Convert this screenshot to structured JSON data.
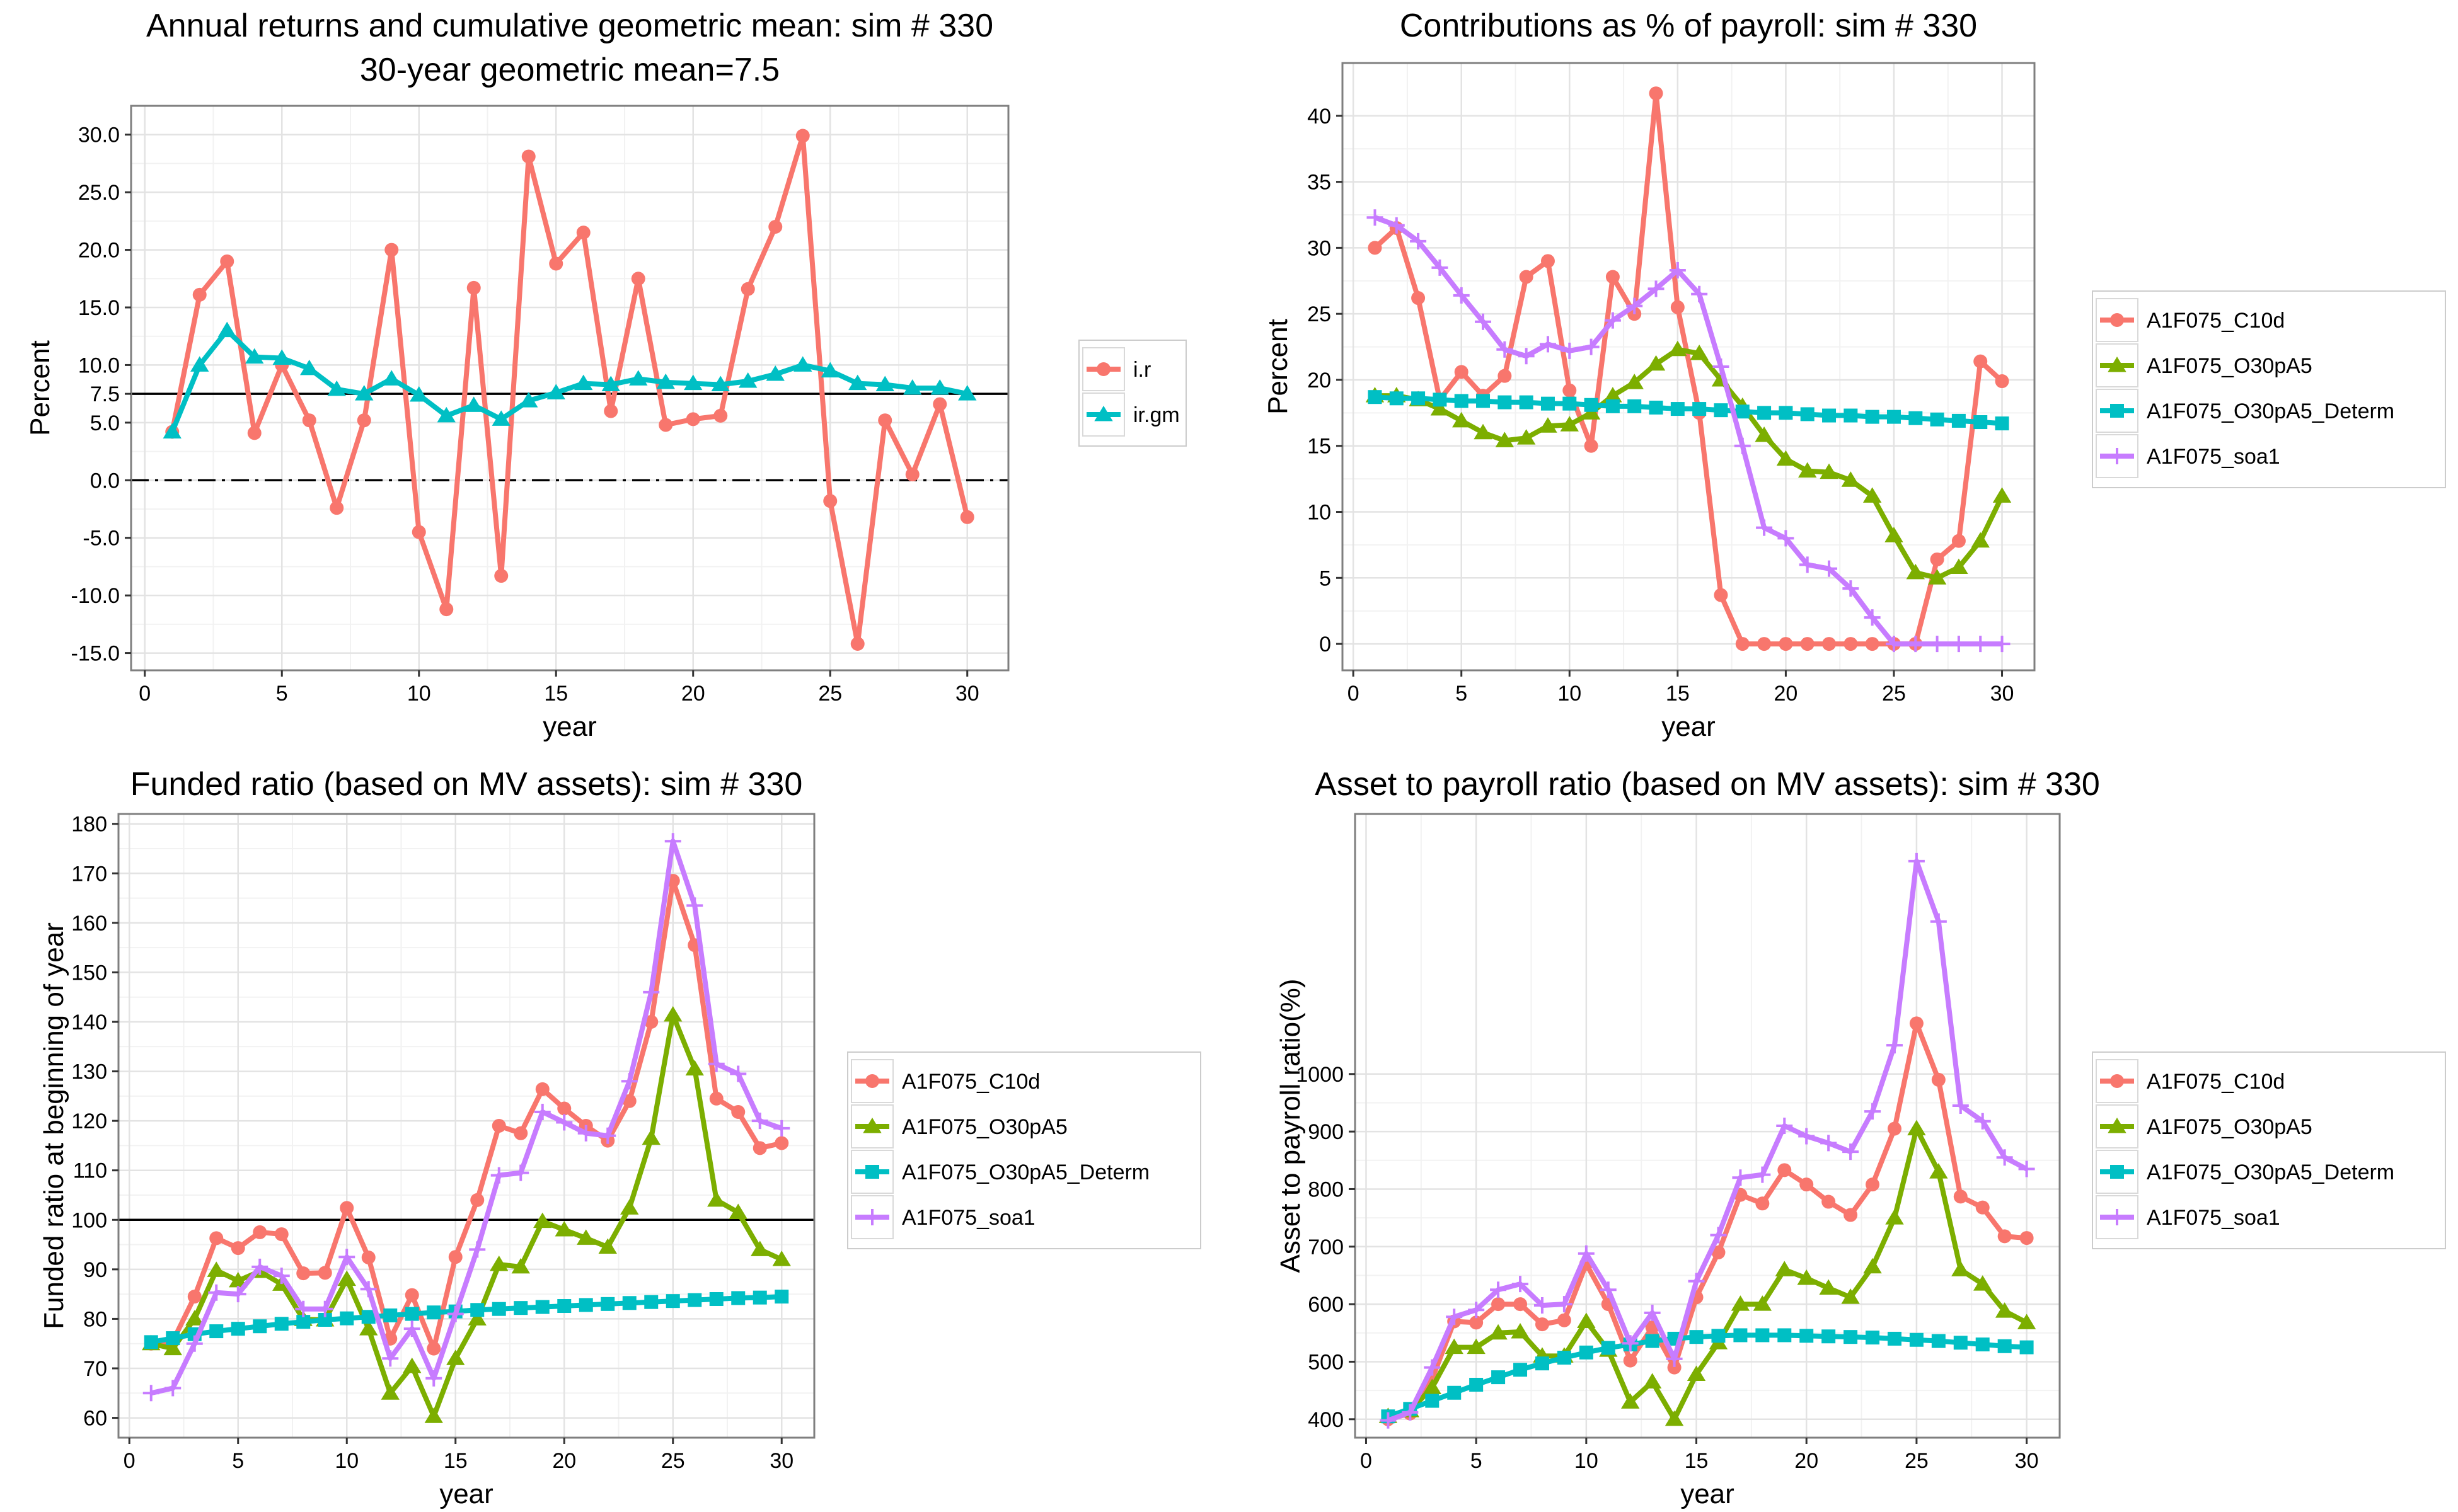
{
  "chart_data": [
    {
      "id": "returns",
      "type": "line",
      "title": "Annual returns and cumulative geometric mean: sim # 330",
      "subtitle": "30-year geometric mean=7.5",
      "xlabel": "year",
      "ylabel": "Percent",
      "xlim": [
        -0.5,
        31.5
      ],
      "ylim": [
        -16.5,
        32.5
      ],
      "xticks": [
        0,
        5,
        10,
        15,
        20,
        25,
        30
      ],
      "yticks": [
        -15,
        -10,
        -5,
        0,
        5,
        7.5,
        10,
        15,
        20,
        25,
        30
      ],
      "ytick_labels": [
        "-15.0",
        "-10.0",
        "-5.0",
        "0.0",
        "5.0",
        "7.5",
        "10.0",
        "15.0",
        "20.0",
        "25.0",
        "30.0"
      ],
      "hlines": [
        {
          "y": 7.5,
          "style": "solid"
        },
        {
          "y": 0,
          "style": "dashdot"
        }
      ],
      "grid": true,
      "legend_position": "right",
      "x": [
        1,
        2,
        3,
        4,
        5,
        6,
        7,
        8,
        9,
        10,
        11,
        12,
        13,
        14,
        15,
        16,
        17,
        18,
        19,
        20,
        21,
        22,
        23,
        24,
        25,
        26,
        27,
        28,
        29,
        30
      ],
      "series": [
        {
          "name": "i.r",
          "color": "#F8766D",
          "marker": "circle",
          "values": [
            4.2,
            16.1,
            19.0,
            4.1,
            10.0,
            5.2,
            -2.4,
            5.2,
            20.0,
            -4.5,
            -11.2,
            16.7,
            -8.3,
            28.1,
            18.8,
            21.5,
            6.0,
            17.5,
            4.8,
            5.3,
            5.6,
            16.6,
            22.0,
            29.9,
            -1.8,
            -14.2,
            5.2,
            0.5,
            6.6,
            -3.2
          ]
        },
        {
          "name": "ir.gm",
          "color": "#00BFC4",
          "marker": "triangle",
          "values": [
            4.2,
            10.0,
            13.0,
            10.7,
            10.6,
            9.7,
            7.9,
            7.5,
            8.8,
            7.4,
            5.6,
            6.5,
            5.3,
            6.9,
            7.6,
            8.4,
            8.3,
            8.8,
            8.5,
            8.4,
            8.3,
            8.6,
            9.2,
            10.0,
            9.5,
            8.4,
            8.3,
            8.0,
            8.0,
            7.5
          ]
        }
      ]
    },
    {
      "id": "contrib",
      "type": "line",
      "title": "Contributions as % of payroll: sim # 330",
      "xlabel": "year",
      "ylabel": "Percent",
      "xlim": [
        -0.5,
        31.5
      ],
      "ylim": [
        -2,
        44
      ],
      "xticks": [
        0,
        5,
        10,
        15,
        20,
        25,
        30
      ],
      "yticks": [
        0,
        5,
        10,
        15,
        20,
        25,
        30,
        35,
        40
      ],
      "ytick_labels": [
        "0",
        "5",
        "10",
        "15",
        "20",
        "25",
        "30",
        "35",
        "40"
      ],
      "grid": true,
      "legend_position": "right",
      "x": [
        1,
        2,
        3,
        4,
        5,
        6,
        7,
        8,
        9,
        10,
        11,
        12,
        13,
        14,
        15,
        16,
        17,
        18,
        19,
        20,
        21,
        22,
        23,
        24,
        25,
        26,
        27,
        28,
        29,
        30
      ],
      "series": [
        {
          "name": "A1F075_C10d",
          "color": "#F8766D",
          "marker": "circle",
          "values": [
            30.0,
            31.5,
            26.2,
            18.5,
            20.6,
            18.8,
            20.3,
            27.8,
            29.0,
            19.2,
            15.0,
            27.8,
            25.0,
            41.7,
            25.5,
            17.5,
            3.7,
            0,
            0,
            0,
            0,
            0,
            0,
            0,
            0,
            0,
            6.4,
            7.8,
            21.4,
            19.9
          ]
        },
        {
          "name": "A1F075_O30pA5",
          "color": "#7CAE00",
          "marker": "triangle",
          "values": [
            18.8,
            18.8,
            18.5,
            17.8,
            16.9,
            16.0,
            15.4,
            15.6,
            16.5,
            16.6,
            17.5,
            18.8,
            19.8,
            21.2,
            22.3,
            22.0,
            20.0,
            18.0,
            15.8,
            14.0,
            13.1,
            13.0,
            12.4,
            11.2,
            8.2,
            5.4,
            5.0,
            5.8,
            7.8,
            11.2
          ]
        },
        {
          "name": "A1F075_O30pA5_Determ",
          "color": "#00BFC4",
          "marker": "square",
          "values": [
            18.7,
            18.6,
            18.6,
            18.5,
            18.4,
            18.4,
            18.3,
            18.3,
            18.2,
            18.2,
            18.1,
            18.0,
            18.0,
            17.9,
            17.8,
            17.8,
            17.7,
            17.6,
            17.5,
            17.5,
            17.4,
            17.3,
            17.3,
            17.2,
            17.2,
            17.1,
            17.0,
            16.9,
            16.8,
            16.7
          ]
        },
        {
          "name": "A1F075_soa1",
          "color": "#C77CFF",
          "marker": "plus",
          "values": [
            32.3,
            31.7,
            30.5,
            28.5,
            26.4,
            24.4,
            22.3,
            21.8,
            22.7,
            22.2,
            22.5,
            24.5,
            25.6,
            26.9,
            28.3,
            26.5,
            21.0,
            15.0,
            8.8,
            8.0,
            6.0,
            5.7,
            4.2,
            2.0,
            0,
            0,
            0,
            0,
            0,
            0
          ]
        }
      ]
    },
    {
      "id": "funded",
      "type": "line",
      "title": "Funded ratio (based on MV assets): sim # 330",
      "xlabel": "year",
      "ylabel": "Funded ratio at beginning of year",
      "xlim": [
        -0.5,
        31.5
      ],
      "ylim": [
        56,
        182
      ],
      "xticks": [
        0,
        5,
        10,
        15,
        20,
        25,
        30
      ],
      "yticks": [
        60,
        70,
        80,
        90,
        100,
        110,
        120,
        130,
        140,
        150,
        160,
        170,
        180
      ],
      "ytick_labels": [
        "60",
        "70",
        "80",
        "90",
        "100",
        "110",
        "120",
        "130",
        "140",
        "150",
        "160",
        "170",
        "180"
      ],
      "hlines": [
        {
          "y": 100,
          "style": "solid"
        }
      ],
      "grid": true,
      "legend_position": "right",
      "x": [
        1,
        2,
        3,
        4,
        5,
        6,
        7,
        8,
        9,
        10,
        11,
        12,
        13,
        14,
        15,
        16,
        17,
        18,
        19,
        20,
        21,
        22,
        23,
        24,
        25,
        26,
        27,
        28,
        29,
        30
      ],
      "series": [
        {
          "name": "A1F075_C10d",
          "color": "#F8766D",
          "marker": "circle",
          "values": [
            75.0,
            75.5,
            84.5,
            96.3,
            94.3,
            97.5,
            97.1,
            89.2,
            89.3,
            102.4,
            92.4,
            76.0,
            84.8,
            74.0,
            92.5,
            104.0,
            119.0,
            117.5,
            126.4,
            122.5,
            119.0,
            116.0,
            124.0,
            140.0,
            168.5,
            155.5,
            124.5,
            121.8,
            114.5,
            115.5
          ]
        },
        {
          "name": "A1F075_O30pA5",
          "color": "#7CAE00",
          "marker": "triangle",
          "values": [
            75.0,
            74.0,
            80.0,
            89.8,
            87.7,
            89.6,
            87.0,
            79.9,
            79.8,
            88.0,
            78.0,
            65.0,
            70.4,
            60.3,
            72.0,
            80.0,
            91.0,
            90.5,
            99.7,
            98.0,
            96.3,
            94.5,
            102.4,
            116.5,
            141.4,
            130.5,
            104.0,
            101.5,
            94.0,
            92.0
          ]
        },
        {
          "name": "A1F075_O30pA5_Determ",
          "color": "#00BFC4",
          "marker": "square",
          "values": [
            75.3,
            76.1,
            76.9,
            77.5,
            78.0,
            78.5,
            79.0,
            79.4,
            79.8,
            80.1,
            80.4,
            80.7,
            81.0,
            81.3,
            81.5,
            81.8,
            82.0,
            82.2,
            82.4,
            82.6,
            82.8,
            83.0,
            83.2,
            83.4,
            83.6,
            83.8,
            84.0,
            84.2,
            84.3,
            84.5
          ]
        },
        {
          "name": "A1F075_soa1",
          "color": "#C77CFF",
          "marker": "plus",
          "values": [
            65.0,
            66.0,
            75.0,
            85.3,
            85.0,
            90.5,
            88.7,
            82.0,
            82.0,
            92.5,
            86.0,
            72.0,
            78.0,
            68.0,
            81.0,
            94.0,
            109.0,
            109.5,
            121.8,
            119.7,
            117.5,
            117.0,
            128.0,
            146.0,
            176.5,
            163.5,
            131.5,
            129.5,
            120.0,
            118.5
          ]
        }
      ]
    },
    {
      "id": "asset",
      "type": "line",
      "title": "Asset to payroll ratio (based on MV assets): sim # 330",
      "xlabel": "year",
      "ylabel": "Asset to payroll ratio(%)",
      "xlim": [
        -0.5,
        31.5
      ],
      "ylim": [
        368,
        1452
      ],
      "xticks": [
        0,
        5,
        10,
        15,
        20,
        25,
        30
      ],
      "yticks": [
        400,
        500,
        600,
        700,
        800,
        900,
        1000
      ],
      "ytick_labels": [
        "400",
        "500",
        "600",
        "700",
        "800",
        "900",
        "1000"
      ],
      "grid": true,
      "legend_position": "right",
      "x": [
        1,
        2,
        3,
        4,
        5,
        6,
        7,
        8,
        9,
        10,
        11,
        12,
        13,
        14,
        15,
        16,
        17,
        18,
        19,
        20,
        21,
        22,
        23,
        24,
        25,
        26,
        27,
        28,
        29,
        30
      ],
      "series": [
        {
          "name": "A1F075_C10d",
          "color": "#F8766D",
          "marker": "circle",
          "values": [
            400,
            410,
            470,
            570,
            568,
            600,
            600,
            565,
            572,
            670,
            600,
            502,
            560,
            490,
            612,
            690,
            790,
            775,
            833,
            808,
            778,
            755,
            808,
            905,
            1088,
            990,
            787,
            768,
            718,
            715
          ]
        },
        {
          "name": "A1F075_O30pA5",
          "color": "#7CAE00",
          "marker": "triangle",
          "values": [
            405,
            415,
            455,
            525,
            525,
            550,
            552,
            510,
            510,
            570,
            520,
            430,
            465,
            400,
            478,
            533,
            600,
            600,
            660,
            645,
            628,
            612,
            665,
            750,
            905,
            830,
            660,
            635,
            588,
            568
          ]
        },
        {
          "name": "A1F075_O30pA5_Determ",
          "color": "#00BFC4",
          "marker": "square",
          "values": [
            405,
            418,
            432,
            446,
            460,
            473,
            486,
            497,
            507,
            516,
            524,
            530,
            536,
            540,
            543,
            545,
            546,
            546,
            546,
            545,
            544,
            543,
            542,
            540,
            538,
            536,
            533,
            530,
            527,
            525
          ]
        },
        {
          "name": "A1F075_soa1",
          "color": "#C77CFF",
          "marker": "plus",
          "values": [
            398,
            412,
            490,
            578,
            590,
            625,
            635,
            598,
            600,
            688,
            625,
            532,
            585,
            505,
            640,
            720,
            820,
            825,
            910,
            892,
            880,
            865,
            935,
            1050,
            1370,
            1265,
            945,
            918,
            855,
            835
          ]
        }
      ]
    }
  ]
}
